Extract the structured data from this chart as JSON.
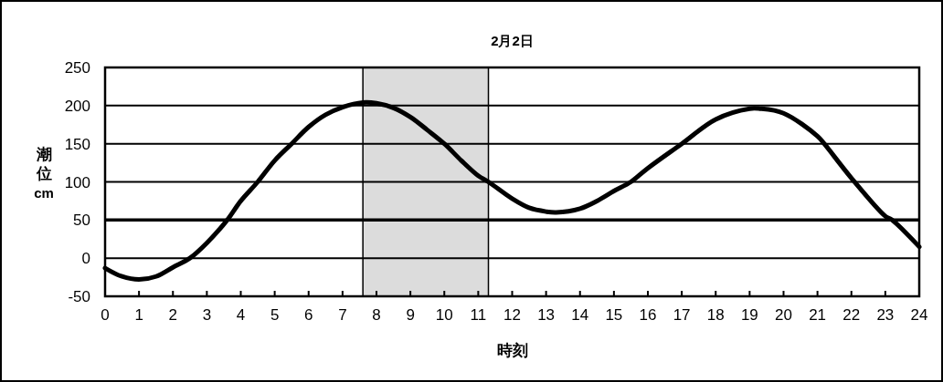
{
  "chart_data": {
    "type": "line",
    "title": "2月2日",
    "xlabel": "時刻",
    "ylabel": "潮位 cm",
    "xlim": [
      0,
      24
    ],
    "xticks": [
      0,
      1,
      2,
      3,
      4,
      5,
      6,
      7,
      8,
      9,
      10,
      11,
      12,
      13,
      14,
      15,
      16,
      17,
      18,
      19,
      20,
      21,
      22,
      23,
      24
    ],
    "ylim": [
      -50,
      250
    ],
    "yticks": [
      -50,
      0,
      50,
      100,
      150,
      200,
      250
    ],
    "grid": "y",
    "marker": "none",
    "line_style": "solid",
    "series": [
      {
        "color": "#000000",
        "x": [
          0,
          0.5,
          1,
          1.5,
          2,
          2.5,
          3,
          3.6,
          4,
          4.5,
          5,
          5.5,
          6,
          6.5,
          7,
          7.6,
          8,
          8.5,
          9,
          9.5,
          10,
          10.5,
          11,
          11.3,
          12,
          12.5,
          13,
          13.3,
          14,
          14.5,
          15,
          15.5,
          16,
          17,
          18,
          19,
          19.3,
          20,
          21,
          21.2,
          22,
          23,
          23.2,
          24
        ],
        "values": [
          -13,
          -24,
          -28,
          -24,
          -12,
          0,
          20,
          50,
          75,
          100,
          128,
          150,
          172,
          188,
          198,
          204,
          203,
          197,
          185,
          168,
          150,
          128,
          108,
          100,
          78,
          66,
          61,
          60,
          65,
          75,
          88,
          100,
          118,
          150,
          182,
          196,
          196,
          190,
          160,
          150,
          105,
          55,
          50,
          15
        ]
      }
    ],
    "ref_lines": [
      {
        "axis": "y",
        "value": 50,
        "color": "#000000"
      }
    ],
    "bands": [
      {
        "axis": "x",
        "from": 7.6,
        "to": 11.3,
        "color": "#dcdcdc"
      }
    ]
  }
}
